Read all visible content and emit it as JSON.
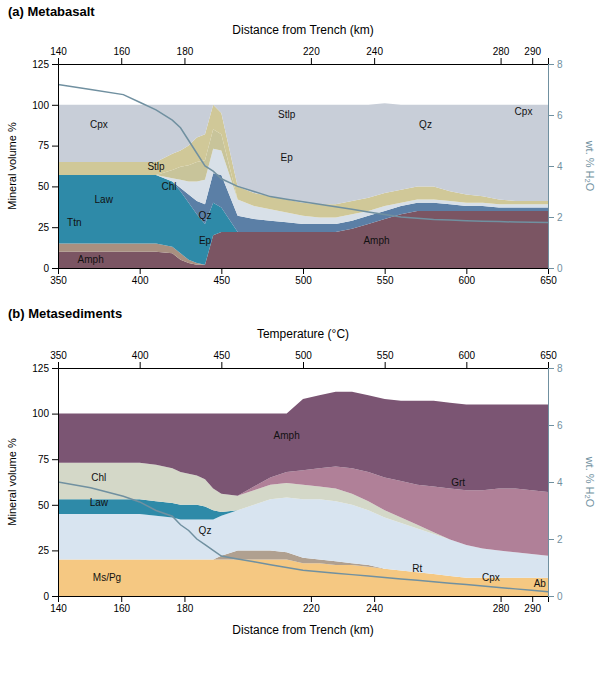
{
  "chart_data": [
    {
      "type": "area",
      "title": "(a) Metabasalt",
      "stacked": true,
      "x": [
        350,
        370,
        390,
        400,
        410,
        420,
        425,
        430,
        435,
        440,
        445,
        450,
        460,
        470,
        480,
        490,
        500,
        510,
        520,
        530,
        540,
        550,
        560,
        570,
        580,
        590,
        600,
        610,
        620,
        630,
        640,
        650
      ],
      "xlim": [
        350,
        650
      ],
      "xticks": [
        350,
        400,
        450,
        500,
        550,
        600,
        650
      ],
      "x2lim": [
        140,
        295
      ],
      "x2ticks": [
        140,
        160,
        180,
        220,
        240,
        280,
        290
      ],
      "x2label": "Distance from Trench (km)",
      "ylim": [
        0,
        125
      ],
      "yticks": [
        0,
        25,
        50,
        75,
        100,
        125
      ],
      "ylabel": "Mineral volume %",
      "y2lim": [
        0,
        8
      ],
      "y2ticks": [
        0,
        2,
        4,
        6,
        8
      ],
      "y2label": "wt. % H₂O",
      "series": [
        {
          "type": "area",
          "color": "#7B5563",
          "values": [
            10,
            10,
            10,
            10,
            10,
            9,
            5,
            3,
            2,
            2,
            20,
            22,
            22,
            22,
            22,
            22,
            22,
            22,
            22,
            24,
            27,
            30,
            33,
            35,
            35,
            35,
            35,
            35,
            35,
            35,
            35,
            35
          ]
        },
        {
          "type": "area",
          "color": "#A89080",
          "values": [
            5,
            5,
            5,
            5,
            5,
            4,
            4,
            2,
            1,
            0,
            0,
            0,
            0,
            0,
            0,
            0,
            0,
            0,
            0,
            0,
            0,
            0,
            0,
            0,
            0,
            0,
            0,
            0,
            0,
            0,
            0,
            0
          ]
        },
        {
          "type": "area",
          "color": "#2E8AA8",
          "values": [
            42,
            42,
            42,
            42,
            42,
            40,
            38,
            35,
            30,
            25,
            20,
            15,
            0,
            0,
            0,
            0,
            0,
            0,
            0,
            0,
            0,
            0,
            0,
            0,
            0,
            0,
            0,
            0,
            0,
            0,
            0,
            0
          ]
        },
        {
          "type": "area",
          "color": "#5B7FA6",
          "values": [
            0,
            0,
            0,
            0,
            0,
            0,
            2,
            5,
            8,
            12,
            18,
            20,
            10,
            8,
            7,
            6,
            5,
            5,
            5,
            5,
            5,
            5,
            5,
            5,
            5,
            4,
            3,
            3,
            2,
            2,
            2,
            2
          ]
        },
        {
          "type": "area",
          "color": "#D8E0E8",
          "values": [
            0,
            0,
            0,
            0,
            0,
            2,
            5,
            8,
            12,
            15,
            15,
            15,
            10,
            8,
            7,
            6,
            5,
            4,
            4,
            4,
            3,
            3,
            2,
            2,
            2,
            2,
            2,
            2,
            2,
            2,
            2,
            2
          ]
        },
        {
          "type": "area",
          "color": "#C8C49A",
          "values": [
            0,
            0,
            0,
            0,
            0,
            5,
            8,
            10,
            12,
            12,
            12,
            10,
            0,
            0,
            0,
            0,
            0,
            0,
            0,
            0,
            0,
            0,
            0,
            0,
            0,
            0,
            0,
            0,
            0,
            0,
            0,
            0
          ]
        },
        {
          "type": "area",
          "color": "#D0C898",
          "values": [
            8,
            8,
            8,
            8,
            8,
            10,
            10,
            12,
            15,
            16,
            15,
            13,
            8,
            8,
            8,
            8,
            8,
            8,
            8,
            8,
            8,
            8,
            8,
            8,
            8,
            6,
            5,
            4,
            3,
            2,
            2,
            2
          ]
        },
        {
          "type": "area",
          "color": "#C8CED8",
          "values": [
            35,
            35,
            35,
            35,
            35,
            30,
            28,
            25,
            20,
            18,
            0,
            5,
            50,
            54,
            56,
            58,
            60,
            61,
            61,
            59,
            57,
            55,
            52,
            50,
            50,
            53,
            55,
            56,
            58,
            59,
            59,
            59
          ]
        },
        {
          "type": "line",
          "axis": "y2",
          "color": "#7090A0",
          "values": [
            7.2,
            7.0,
            6.8,
            6.5,
            6.2,
            5.8,
            5.5,
            5.0,
            4.5,
            4.0,
            3.8,
            3.5,
            3.2,
            3.0,
            2.8,
            2.7,
            2.6,
            2.5,
            2.4,
            2.3,
            2.2,
            2.1,
            2.0,
            1.95,
            1.9,
            1.88,
            1.85,
            1.83,
            1.82,
            1.8,
            1.79,
            1.78
          ]
        }
      ],
      "annotations": [
        {
          "text": "Cpx",
          "x": 375,
          "y": 88
        },
        {
          "text": "Law",
          "x": 378,
          "y": 42
        },
        {
          "text": "Ttn",
          "x": 360,
          "y": 28
        },
        {
          "text": "Amph",
          "x": 370,
          "y": 5
        },
        {
          "text": "Stlp",
          "x": 410,
          "y": 62
        },
        {
          "text": "Chl",
          "x": 418,
          "y": 50
        },
        {
          "text": "Qz",
          "x": 440,
          "y": 32
        },
        {
          "text": "Ep",
          "x": 440,
          "y": 17
        },
        {
          "text": "Stlp",
          "x": 490,
          "y": 94
        },
        {
          "text": "Ep",
          "x": 490,
          "y": 68
        },
        {
          "text": "Amph",
          "x": 545,
          "y": 17
        },
        {
          "text": "Qz",
          "x": 575,
          "y": 88
        },
        {
          "text": "Cpx",
          "x": 635,
          "y": 96
        }
      ]
    },
    {
      "type": "area",
      "title": "(b) Metasediments",
      "stacked": true,
      "x": [
        350,
        370,
        390,
        400,
        410,
        420,
        425,
        430,
        435,
        440,
        445,
        450,
        460,
        470,
        480,
        490,
        500,
        510,
        520,
        530,
        540,
        550,
        560,
        570,
        580,
        590,
        600,
        610,
        620,
        630,
        640,
        650
      ],
      "xlim": [
        350,
        650
      ],
      "xticks": [
        350,
        400,
        450,
        500,
        550,
        600,
        650
      ],
      "xlabel": "Temperature (°C)",
      "x2lim": [
        140,
        295
      ],
      "x2ticks": [
        140,
        160,
        180,
        220,
        240,
        280,
        290
      ],
      "x2label": "Distance from Trench (km)",
      "ylim": [
        0,
        125
      ],
      "yticks": [
        0,
        25,
        50,
        75,
        100,
        125
      ],
      "ylabel": "Mineral volume %",
      "y2lim": [
        0,
        8
      ],
      "y2ticks": [
        0,
        2,
        4,
        6,
        8
      ],
      "y2label": "wt. % H₂O",
      "series": [
        {
          "type": "area",
          "color": "#F5C882",
          "values": [
            20,
            20,
            20,
            20,
            20,
            20,
            20,
            20,
            20,
            20,
            20,
            20,
            20,
            20,
            20,
            20,
            18,
            18,
            17,
            17,
            16,
            15,
            14,
            13,
            12,
            11,
            10,
            10,
            10,
            10,
            10,
            10
          ]
        },
        {
          "type": "area",
          "color": "#B0A090",
          "values": [
            0,
            0,
            0,
            0,
            0,
            0,
            0,
            0,
            0,
            0,
            0,
            2,
            5,
            5,
            5,
            4,
            3,
            2,
            2,
            1,
            1,
            0,
            0,
            0,
            0,
            0,
            0,
            0,
            0,
            0,
            0,
            0
          ]
        },
        {
          "type": "area",
          "color": "#D8E4F0",
          "values": [
            25,
            25,
            25,
            25,
            24,
            23,
            22,
            22,
            22,
            22,
            22,
            22,
            22,
            25,
            28,
            30,
            32,
            33,
            33,
            32,
            30,
            28,
            26,
            24,
            22,
            20,
            18,
            16,
            15,
            14,
            13,
            12
          ]
        },
        {
          "type": "area",
          "color": "#2E8AA8",
          "values": [
            8,
            8,
            8,
            8,
            8,
            8,
            8,
            8,
            8,
            7,
            5,
            2,
            0,
            0,
            0,
            0,
            0,
            0,
            0,
            0,
            0,
            0,
            0,
            0,
            0,
            0,
            0,
            0,
            0,
            0,
            0,
            0
          ]
        },
        {
          "type": "area",
          "color": "#D4D8C8",
          "values": [
            20,
            20,
            20,
            20,
            20,
            19,
            18,
            17,
            16,
            15,
            12,
            10,
            8,
            8,
            8,
            8,
            8,
            7,
            7,
            6,
            5,
            4,
            3,
            2,
            1,
            0,
            0,
            0,
            0,
            0,
            0,
            0
          ]
        },
        {
          "type": "area",
          "color": "#B08098",
          "values": [
            0,
            0,
            0,
            0,
            0,
            0,
            0,
            0,
            0,
            0,
            0,
            0,
            0,
            2,
            4,
            6,
            8,
            10,
            12,
            14,
            16,
            18,
            20,
            22,
            25,
            28,
            30,
            32,
            34,
            35,
            35,
            35
          ]
        },
        {
          "type": "area",
          "color": "#7B5573",
          "values": [
            27,
            27,
            27,
            27,
            28,
            30,
            32,
            33,
            34,
            36,
            41,
            44,
            45,
            40,
            35,
            32,
            39,
            40,
            41,
            42,
            42,
            43,
            44,
            46,
            47,
            47,
            47,
            47,
            46,
            46,
            47,
            48
          ]
        },
        {
          "type": "line",
          "axis": "y2",
          "color": "#7090A0",
          "values": [
            4.0,
            3.8,
            3.5,
            3.3,
            3.0,
            2.8,
            2.5,
            2.3,
            2.0,
            1.8,
            1.6,
            1.4,
            1.3,
            1.2,
            1.1,
            1.0,
            0.9,
            0.85,
            0.8,
            0.75,
            0.7,
            0.65,
            0.6,
            0.55,
            0.5,
            0.45,
            0.4,
            0.35,
            0.3,
            0.25,
            0.2,
            0.15
          ]
        }
      ],
      "annotations": [
        {
          "text": "Amph",
          "x": 490,
          "y": 88
        },
        {
          "text": "Chl",
          "x": 375,
          "y": 65
        },
        {
          "text": "Law",
          "x": 375,
          "y": 51
        },
        {
          "text": "Qz",
          "x": 440,
          "y": 36
        },
        {
          "text": "Ms/Pg",
          "x": 380,
          "y": 10
        },
        {
          "text": "Grt",
          "x": 595,
          "y": 62
        },
        {
          "text": "Rt",
          "x": 570,
          "y": 15
        },
        {
          "text": "Cpx",
          "x": 615,
          "y": 10
        },
        {
          "text": "Ab",
          "x": 645,
          "y": 7
        }
      ]
    }
  ]
}
